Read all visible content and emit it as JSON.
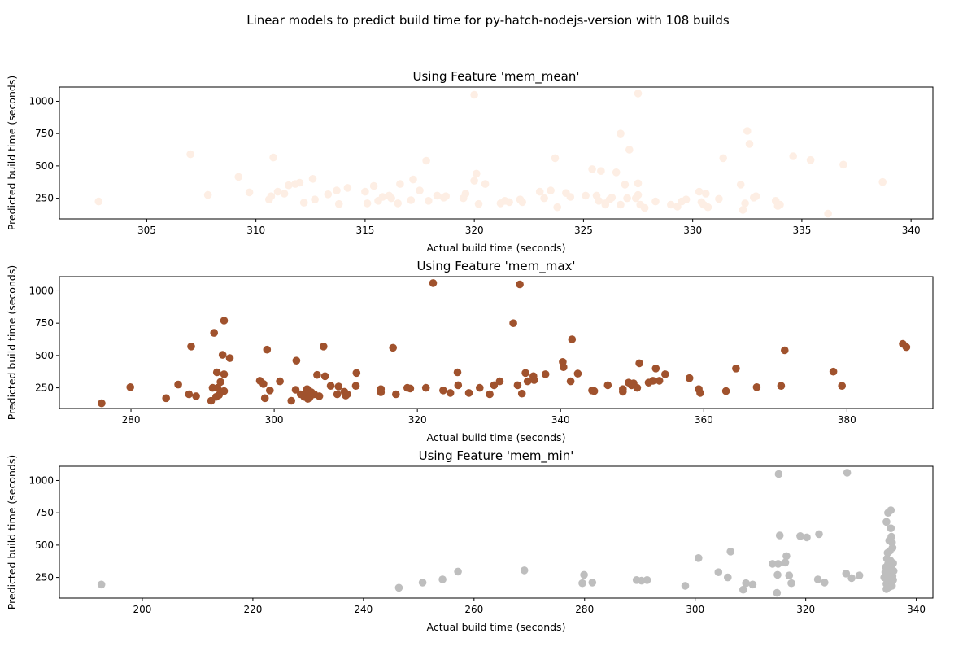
{
  "figure": {
    "suptitle": "Linear models to predict build time for py-hatch-nodejs-version with 108 builds"
  },
  "chart_data": [
    {
      "type": "scatter",
      "title": "Using Feature 'mem_mean'",
      "xlabel": "Actual build time (seconds)",
      "ylabel": "Predicted build time (seconds)",
      "color": "#fdeee4",
      "xlim": [
        301,
        341
      ],
      "ylim": [
        90,
        1110
      ],
      "xticks": [
        305,
        310,
        315,
        320,
        325,
        330,
        335,
        340
      ],
      "yticks": [
        250,
        500,
        750,
        1000
      ],
      "grid": false,
      "points": [
        [
          302.8,
          225
        ],
        [
          307.0,
          590
        ],
        [
          307.8,
          275
        ],
        [
          309.2,
          415
        ],
        [
          309.7,
          295
        ],
        [
          310.6,
          240
        ],
        [
          310.7,
          265
        ],
        [
          310.8,
          565
        ],
        [
          311.0,
          300
        ],
        [
          311.3,
          285
        ],
        [
          311.5,
          350
        ],
        [
          311.8,
          360
        ],
        [
          312.0,
          370
        ],
        [
          312.2,
          215
        ],
        [
          312.6,
          400
        ],
        [
          312.7,
          240
        ],
        [
          313.3,
          280
        ],
        [
          313.7,
          310
        ],
        [
          313.8,
          205
        ],
        [
          314.2,
          330
        ],
        [
          315.0,
          300
        ],
        [
          315.1,
          210
        ],
        [
          315.4,
          345
        ],
        [
          315.6,
          230
        ],
        [
          315.8,
          260
        ],
        [
          316.1,
          270
        ],
        [
          316.2,
          250
        ],
        [
          316.5,
          210
        ],
        [
          316.6,
          360
        ],
        [
          317.1,
          235
        ],
        [
          317.2,
          395
        ],
        [
          317.5,
          310
        ],
        [
          317.8,
          540
        ],
        [
          317.9,
          230
        ],
        [
          318.3,
          270
        ],
        [
          318.6,
          255
        ],
        [
          318.7,
          265
        ],
        [
          319.5,
          250
        ],
        [
          319.6,
          285
        ],
        [
          320.0,
          1050
        ],
        [
          320.0,
          385
        ],
        [
          320.1,
          440
        ],
        [
          320.2,
          205
        ],
        [
          320.5,
          360
        ],
        [
          321.2,
          210
        ],
        [
          321.4,
          230
        ],
        [
          321.6,
          220
        ],
        [
          322.1,
          240
        ],
        [
          322.2,
          220
        ],
        [
          323.0,
          300
        ],
        [
          323.2,
          250
        ],
        [
          323.5,
          310
        ],
        [
          323.7,
          560
        ],
        [
          323.8,
          180
        ],
        [
          324.2,
          290
        ],
        [
          324.4,
          260
        ],
        [
          325.1,
          270
        ],
        [
          325.4,
          475
        ],
        [
          325.6,
          270
        ],
        [
          325.7,
          230
        ],
        [
          325.8,
          460
        ],
        [
          326.0,
          200
        ],
        [
          326.0,
          210
        ],
        [
          326.2,
          240
        ],
        [
          326.3,
          255
        ],
        [
          326.5,
          450
        ],
        [
          326.7,
          750
        ],
        [
          326.7,
          200
        ],
        [
          326.9,
          355
        ],
        [
          327.0,
          250
        ],
        [
          327.1,
          625
        ],
        [
          327.4,
          250
        ],
        [
          327.5,
          1060
        ],
        [
          327.5,
          365
        ],
        [
          327.5,
          275
        ],
        [
          327.6,
          200
        ],
        [
          327.8,
          175
        ],
        [
          328.3,
          225
        ],
        [
          329.0,
          200
        ],
        [
          329.3,
          185
        ],
        [
          329.5,
          225
        ],
        [
          329.7,
          240
        ],
        [
          330.3,
          300
        ],
        [
          330.4,
          220
        ],
        [
          330.5,
          200
        ],
        [
          330.6,
          285
        ],
        [
          330.7,
          180
        ],
        [
          331.2,
          245
        ],
        [
          331.4,
          560
        ],
        [
          332.2,
          355
        ],
        [
          332.3,
          160
        ],
        [
          332.4,
          210
        ],
        [
          332.5,
          770
        ],
        [
          332.6,
          670
        ],
        [
          332.8,
          255
        ],
        [
          332.9,
          265
        ],
        [
          333.8,
          230
        ],
        [
          333.9,
          190
        ],
        [
          334.0,
          200
        ],
        [
          334.6,
          575
        ],
        [
          335.4,
          545
        ],
        [
          336.2,
          130
        ],
        [
          336.9,
          510
        ],
        [
          338.7,
          375
        ]
      ]
    },
    {
      "type": "scatter",
      "title": "Using Feature 'mem_max'",
      "xlabel": "Actual build time (seconds)",
      "ylabel": "Predicted build time (seconds)",
      "color": "#a0522d",
      "xlim": [
        270,
        392
      ],
      "ylim": [
        90,
        1110
      ],
      "xticks": [
        280,
        300,
        320,
        340,
        360,
        380
      ],
      "yticks": [
        250,
        500,
        750,
        1000
      ],
      "grid": false,
      "points": [
        [
          275.9,
          130
        ],
        [
          279.9,
          255
        ],
        [
          284.9,
          170
        ],
        [
          286.6,
          275
        ],
        [
          288.1,
          200
        ],
        [
          288.4,
          570
        ],
        [
          289.1,
          185
        ],
        [
          291.2,
          150
        ],
        [
          291.4,
          250
        ],
        [
          291.6,
          675
        ],
        [
          291.9,
          180
        ],
        [
          292.0,
          370
        ],
        [
          292.1,
          250
        ],
        [
          292.3,
          195
        ],
        [
          292.5,
          295
        ],
        [
          292.8,
          505
        ],
        [
          293.0,
          770
        ],
        [
          293.0,
          355
        ],
        [
          293.0,
          225
        ],
        [
          293.8,
          480
        ],
        [
          298.0,
          305
        ],
        [
          298.5,
          280
        ],
        [
          298.7,
          170
        ],
        [
          299.0,
          545
        ],
        [
          299.4,
          230
        ],
        [
          300.8,
          300
        ],
        [
          302.4,
          150
        ],
        [
          303.0,
          235
        ],
        [
          303.1,
          460
        ],
        [
          303.7,
          200
        ],
        [
          304.2,
          180
        ],
        [
          304.4,
          210
        ],
        [
          304.5,
          200
        ],
        [
          304.6,
          240
        ],
        [
          304.7,
          165
        ],
        [
          305.0,
          180
        ],
        [
          305.2,
          215
        ],
        [
          305.6,
          200
        ],
        [
          306.0,
          350
        ],
        [
          306.3,
          185
        ],
        [
          306.9,
          570
        ],
        [
          307.1,
          340
        ],
        [
          307.9,
          265
        ],
        [
          308.8,
          200
        ],
        [
          309.0,
          260
        ],
        [
          309.8,
          220
        ],
        [
          310.0,
          190
        ],
        [
          310.2,
          200
        ],
        [
          311.5,
          365
        ],
        [
          311.4,
          265
        ],
        [
          314.9,
          240
        ],
        [
          314.9,
          215
        ],
        [
          316.6,
          560
        ],
        [
          317.0,
          200
        ],
        [
          318.6,
          250
        ],
        [
          319.0,
          245
        ],
        [
          321.2,
          250
        ],
        [
          322.2,
          1060
        ],
        [
          323.6,
          230
        ],
        [
          324.6,
          210
        ],
        [
          325.6,
          370
        ],
        [
          325.7,
          270
        ],
        [
          327.2,
          210
        ],
        [
          328.7,
          250
        ],
        [
          330.1,
          200
        ],
        [
          330.7,
          270
        ],
        [
          331.5,
          300
        ],
        [
          333.4,
          750
        ],
        [
          334.3,
          1050
        ],
        [
          334.0,
          270
        ],
        [
          334.6,
          205
        ],
        [
          335.1,
          365
        ],
        [
          335.4,
          300
        ],
        [
          336.2,
          340
        ],
        [
          336.3,
          310
        ],
        [
          337.9,
          355
        ],
        [
          340.3,
          450
        ],
        [
          340.4,
          410
        ],
        [
          341.4,
          300
        ],
        [
          341.6,
          625
        ],
        [
          342.4,
          360
        ],
        [
          344.4,
          230
        ],
        [
          344.7,
          225
        ],
        [
          346.6,
          270
        ],
        [
          348.7,
          240
        ],
        [
          348.7,
          220
        ],
        [
          349.5,
          290
        ],
        [
          349.9,
          270
        ],
        [
          350.2,
          285
        ],
        [
          350.7,
          250
        ],
        [
          351.0,
          440
        ],
        [
          352.3,
          290
        ],
        [
          352.9,
          305
        ],
        [
          353.3,
          400
        ],
        [
          353.8,
          305
        ],
        [
          354.6,
          355
        ],
        [
          358.0,
          325
        ],
        [
          359.3,
          240
        ],
        [
          359.5,
          210
        ],
        [
          363.1,
          225
        ],
        [
          364.5,
          400
        ],
        [
          367.4,
          255
        ],
        [
          370.8,
          265
        ],
        [
          371.3,
          540
        ],
        [
          378.1,
          375
        ],
        [
          379.3,
          265
        ],
        [
          387.8,
          590
        ],
        [
          388.3,
          565
        ]
      ]
    },
    {
      "type": "scatter",
      "title": "Using Feature 'mem_min'",
      "xlabel": "Actual build time (seconds)",
      "ylabel": "Predicted build time (seconds)",
      "color": "#bebebe",
      "xlim": [
        185,
        343
      ],
      "ylim": [
        90,
        1110
      ],
      "xticks": [
        200,
        220,
        240,
        260,
        280,
        300,
        320,
        340
      ],
      "yticks": [
        250,
        500,
        750,
        1000
      ],
      "grid": false,
      "points": [
        [
          192.6,
          195
        ],
        [
          246.4,
          170
        ],
        [
          250.7,
          210
        ],
        [
          254.3,
          235
        ],
        [
          257.1,
          295
        ],
        [
          269.1,
          305
        ],
        [
          279.6,
          205
        ],
        [
          279.9,
          270
        ],
        [
          281.4,
          210
        ],
        [
          289.4,
          230
        ],
        [
          290.3,
          225
        ],
        [
          291.3,
          230
        ],
        [
          298.2,
          185
        ],
        [
          300.6,
          400
        ],
        [
          304.2,
          290
        ],
        [
          305.9,
          250
        ],
        [
          306.4,
          450
        ],
        [
          308.7,
          155
        ],
        [
          309.2,
          205
        ],
        [
          310.4,
          195
        ],
        [
          314.0,
          355
        ],
        [
          314.8,
          130
        ],
        [
          314.9,
          270
        ],
        [
          315.0,
          355
        ],
        [
          315.1,
          1050
        ],
        [
          315.3,
          575
        ],
        [
          316.3,
          365
        ],
        [
          316.5,
          415
        ],
        [
          317.0,
          265
        ],
        [
          317.4,
          205
        ],
        [
          319.0,
          570
        ],
        [
          320.2,
          560
        ],
        [
          322.4,
          585
        ],
        [
          322.2,
          235
        ],
        [
          323.4,
          210
        ],
        [
          327.3,
          280
        ],
        [
          327.5,
          1060
        ],
        [
          328.3,
          245
        ],
        [
          329.7,
          265
        ],
        [
          334.2,
          250
        ],
        [
          334.4,
          290
        ],
        [
          334.5,
          330
        ],
        [
          334.6,
          200
        ],
        [
          334.6,
          160
        ],
        [
          334.6,
          680
        ],
        [
          334.7,
          265
        ],
        [
          334.7,
          395
        ],
        [
          334.8,
          440
        ],
        [
          334.8,
          225
        ],
        [
          334.9,
          355
        ],
        [
          334.9,
          210
        ],
        [
          334.9,
          750
        ],
        [
          335.0,
          300
        ],
        [
          335.0,
          190
        ],
        [
          335.0,
          270
        ],
        [
          335.1,
          535
        ],
        [
          335.1,
          175
        ],
        [
          335.1,
          240
        ],
        [
          335.2,
          320
        ],
        [
          335.2,
          285
        ],
        [
          335.2,
          455
        ],
        [
          335.3,
          250
        ],
        [
          335.3,
          380
        ],
        [
          335.3,
          200
        ],
        [
          335.4,
          770
        ],
        [
          335.4,
          630
        ],
        [
          335.5,
          565
        ],
        [
          335.5,
          345
        ],
        [
          335.5,
          215
        ],
        [
          335.6,
          520
        ],
        [
          335.6,
          310
        ],
        [
          335.6,
          185
        ],
        [
          335.7,
          480
        ],
        [
          335.7,
          260
        ],
        [
          335.8,
          360
        ],
        [
          335.8,
          230
        ],
        [
          335.9,
          300
        ]
      ]
    }
  ]
}
